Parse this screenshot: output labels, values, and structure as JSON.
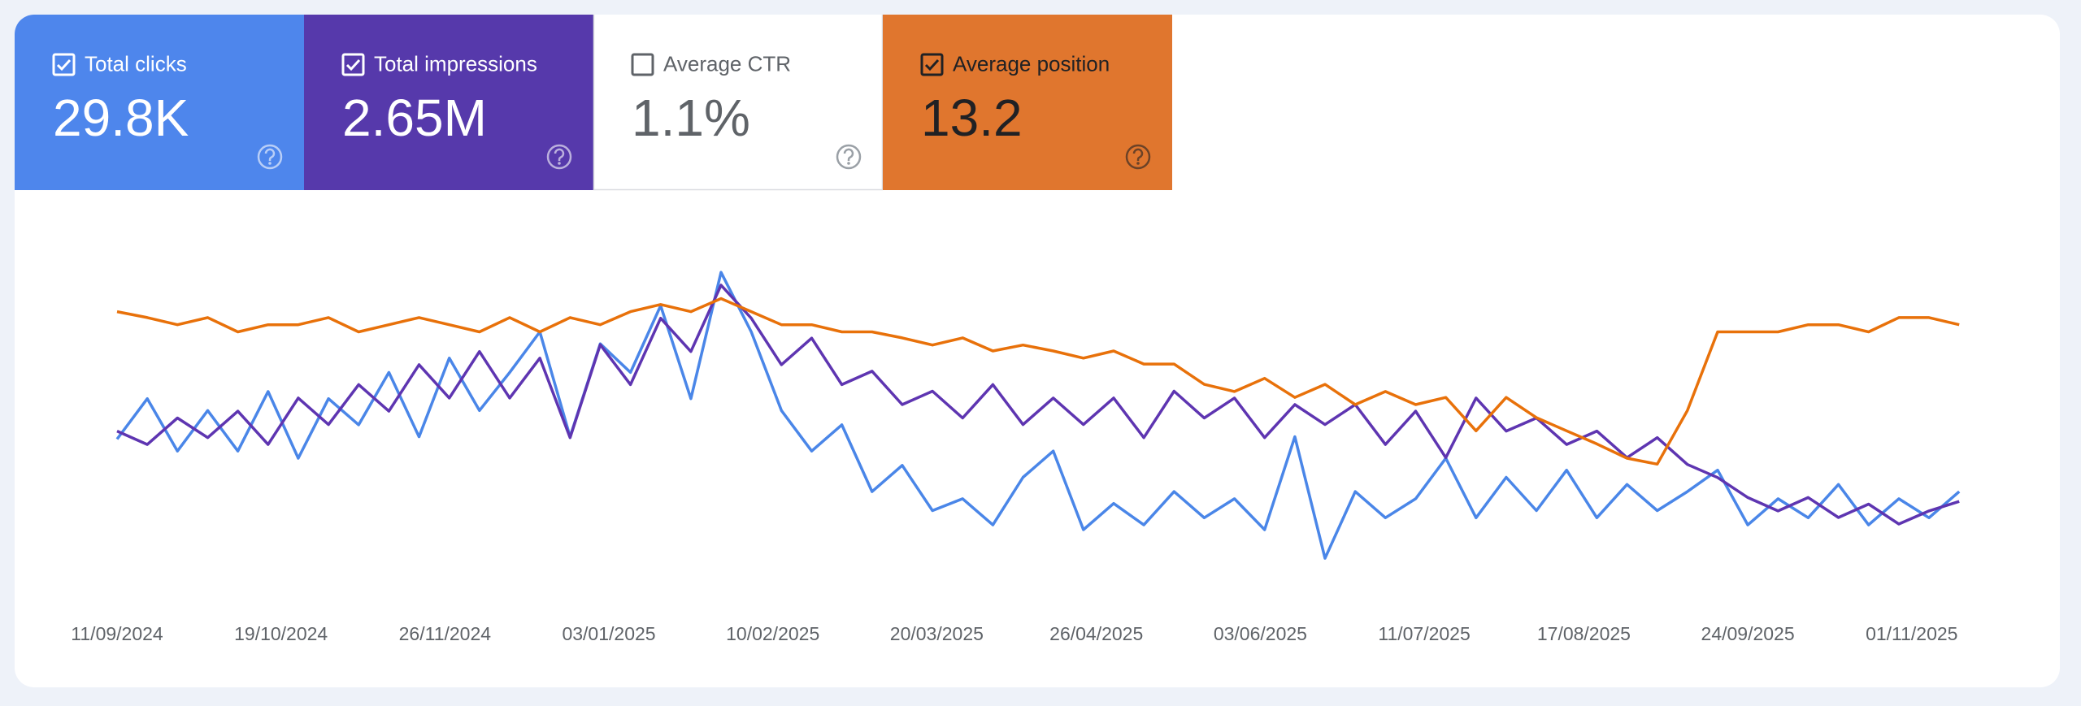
{
  "chart_data": {
    "type": "line",
    "x": [
      "11/09/2024",
      "18/09/2024",
      "25/09/2024",
      "02/10/2024",
      "09/10/2024",
      "16/10/2024",
      "23/10/2024",
      "30/10/2024",
      "06/11/2024",
      "13/11/2024",
      "20/11/2024",
      "27/11/2024",
      "04/12/2024",
      "11/12/2024",
      "18/12/2024",
      "25/12/2024",
      "01/01/2025",
      "08/01/2025",
      "15/01/2025",
      "22/01/2025",
      "29/01/2025",
      "05/02/2025",
      "12/02/2025",
      "19/02/2025",
      "26/02/2025",
      "05/03/2025",
      "12/03/2025",
      "19/03/2025",
      "26/03/2025",
      "02/04/2025",
      "09/04/2025",
      "16/04/2025",
      "23/04/2025",
      "30/04/2025",
      "07/05/2025",
      "14/05/2025",
      "21/05/2025",
      "28/05/2025",
      "04/06/2025",
      "11/06/2025",
      "18/06/2025",
      "25/06/2025",
      "02/07/2025",
      "09/07/2025",
      "16/07/2025",
      "23/07/2025",
      "30/07/2025",
      "06/08/2025",
      "13/08/2025",
      "20/08/2025",
      "27/08/2025",
      "03/09/2025",
      "10/09/2025",
      "17/09/2025",
      "24/09/2025",
      "01/10/2025",
      "08/10/2025",
      "15/10/2025",
      "22/10/2025",
      "29/10/2025",
      "05/11/2025",
      "12/11/2025"
    ],
    "xlim": [
      "11/09/2024",
      "18/11/2025"
    ],
    "xticks": [
      "11/09/2024",
      "19/10/2024",
      "26/11/2024",
      "03/01/2025",
      "10/02/2025",
      "20/03/2025",
      "26/04/2025",
      "03/06/2025",
      "11/07/2025",
      "17/08/2025",
      "24/09/2025",
      "01/11/2025"
    ],
    "series": [
      {
        "name": "Total clicks",
        "total": "29.8K",
        "checked": true,
        "color": "#4e86ec",
        "text_color": "#ffffff",
        "line_color": "#4a86e8",
        "ylim": [
          0,
          150
        ],
        "values": [
          68,
          85,
          63,
          80,
          63,
          88,
          60,
          85,
          74,
          96,
          69,
          102,
          80,
          96,
          113,
          69,
          108,
          96,
          124,
          85,
          138,
          113,
          80,
          63,
          74,
          46,
          57,
          38,
          43,
          32,
          52,
          63,
          30,
          41,
          32,
          46,
          35,
          43,
          30,
          69,
          18,
          46,
          35,
          43,
          60,
          35,
          52,
          38,
          55,
          35,
          49,
          38,
          46,
          55,
          32,
          43,
          35,
          49,
          32,
          43,
          35,
          46
        ]
      },
      {
        "name": "Total impressions",
        "total": "2.65M",
        "checked": true,
        "color": "#5639ab",
        "text_color": "#ffffff",
        "line_color": "#5e35b1",
        "ylim": [
          0,
          12000
        ],
        "values": [
          5710,
          5260,
          6150,
          5490,
          6380,
          5260,
          6820,
          5930,
          7270,
          6380,
          7940,
          6820,
          8380,
          6820,
          8160,
          5490,
          8610,
          7270,
          9500,
          8380,
          10610,
          9500,
          7940,
          8830,
          7270,
          7720,
          6600,
          7050,
          6150,
          7270,
          5930,
          6820,
          5930,
          6820,
          5490,
          7050,
          6150,
          6820,
          5490,
          6600,
          5930,
          6600,
          5260,
          6380,
          4820,
          6820,
          5710,
          6150,
          5260,
          5710,
          4820,
          5490,
          4590,
          4150,
          3480,
          3030,
          3480,
          2810,
          3260,
          2590,
          3030,
          3350
        ]
      },
      {
        "name": "Average CTR",
        "total": "1.1%",
        "checked": false,
        "color": "#ffffff",
        "text_color": "#5f6368"
      },
      {
        "name": "Average position",
        "total": "13.2",
        "checked": true,
        "color": "#e0762e",
        "text_color": "#202124",
        "line_color": "#e8710a",
        "ylim": [
          30,
          0
        ],
        "values": [
          5.7,
          6.2,
          6.8,
          6.2,
          7.4,
          6.8,
          6.8,
          6.2,
          7.4,
          6.8,
          6.2,
          6.8,
          7.4,
          6.2,
          7.4,
          6.2,
          6.8,
          5.7,
          5.1,
          5.7,
          4.6,
          5.7,
          6.8,
          6.8,
          7.4,
          7.4,
          7.9,
          8.5,
          7.9,
          9.0,
          8.5,
          9.0,
          9.6,
          9.0,
          10.1,
          10.1,
          11.8,
          12.4,
          11.3,
          12.9,
          11.8,
          13.5,
          12.4,
          13.5,
          12.9,
          15.7,
          12.9,
          14.6,
          15.7,
          16.8,
          18.0,
          18.5,
          14.0,
          7.4,
          7.4,
          7.4,
          6.8,
          6.8,
          7.4,
          6.2,
          6.2,
          6.8
        ]
      }
    ]
  }
}
